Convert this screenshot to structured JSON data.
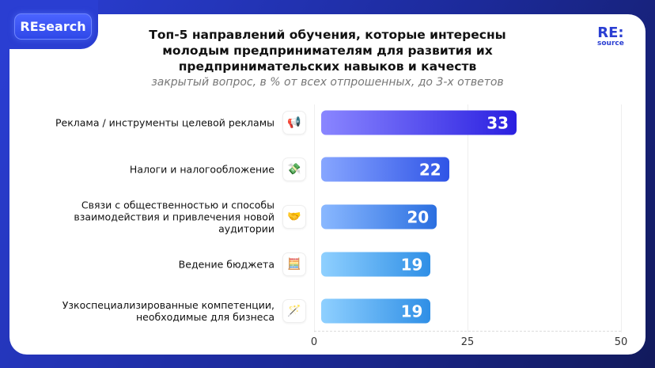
{
  "badge": "REsearch",
  "logo": {
    "top": "RE:",
    "bottom": "source"
  },
  "chart_data": {
    "type": "bar",
    "orientation": "horizontal",
    "title": "Топ-5 направлений обучения, которые интересны молодым предпринимателям для развития их предпринимательских навыков и качеств",
    "subtitle": "закрытый вопрос, в % от всех отпрошенных, до 3-х ответов",
    "categories": [
      "Реклама / инструменты целевой рекламы",
      "Налоги и налогообложение",
      "Связи с общественностью и способы взаимодействия и привлечения новой аудитории",
      "Ведение бюджета",
      "Узкоспециализированные компетенции, необходимые для бизнеса"
    ],
    "icons": [
      "megaphone-icon",
      "money-icon",
      "handshake-icon",
      "abacus-icon",
      "magic-wand-icon"
    ],
    "icon_glyphs": [
      "📢",
      "💸",
      "🤝",
      "🧮",
      "🪄"
    ],
    "values": [
      33,
      22,
      20,
      19,
      19
    ],
    "bar_gradients": [
      [
        "#8a86ff",
        "#2a1fe0"
      ],
      [
        "#87a6ff",
        "#2f54e6"
      ],
      [
        "#8ab8ff",
        "#2b6fe0"
      ],
      [
        "#8fd0ff",
        "#2f8fe6"
      ],
      [
        "#8fd0ff",
        "#2f8fe6"
      ]
    ],
    "xlim": [
      0,
      50
    ],
    "xticks": [
      "0",
      "25",
      "50"
    ],
    "grid": true
  }
}
